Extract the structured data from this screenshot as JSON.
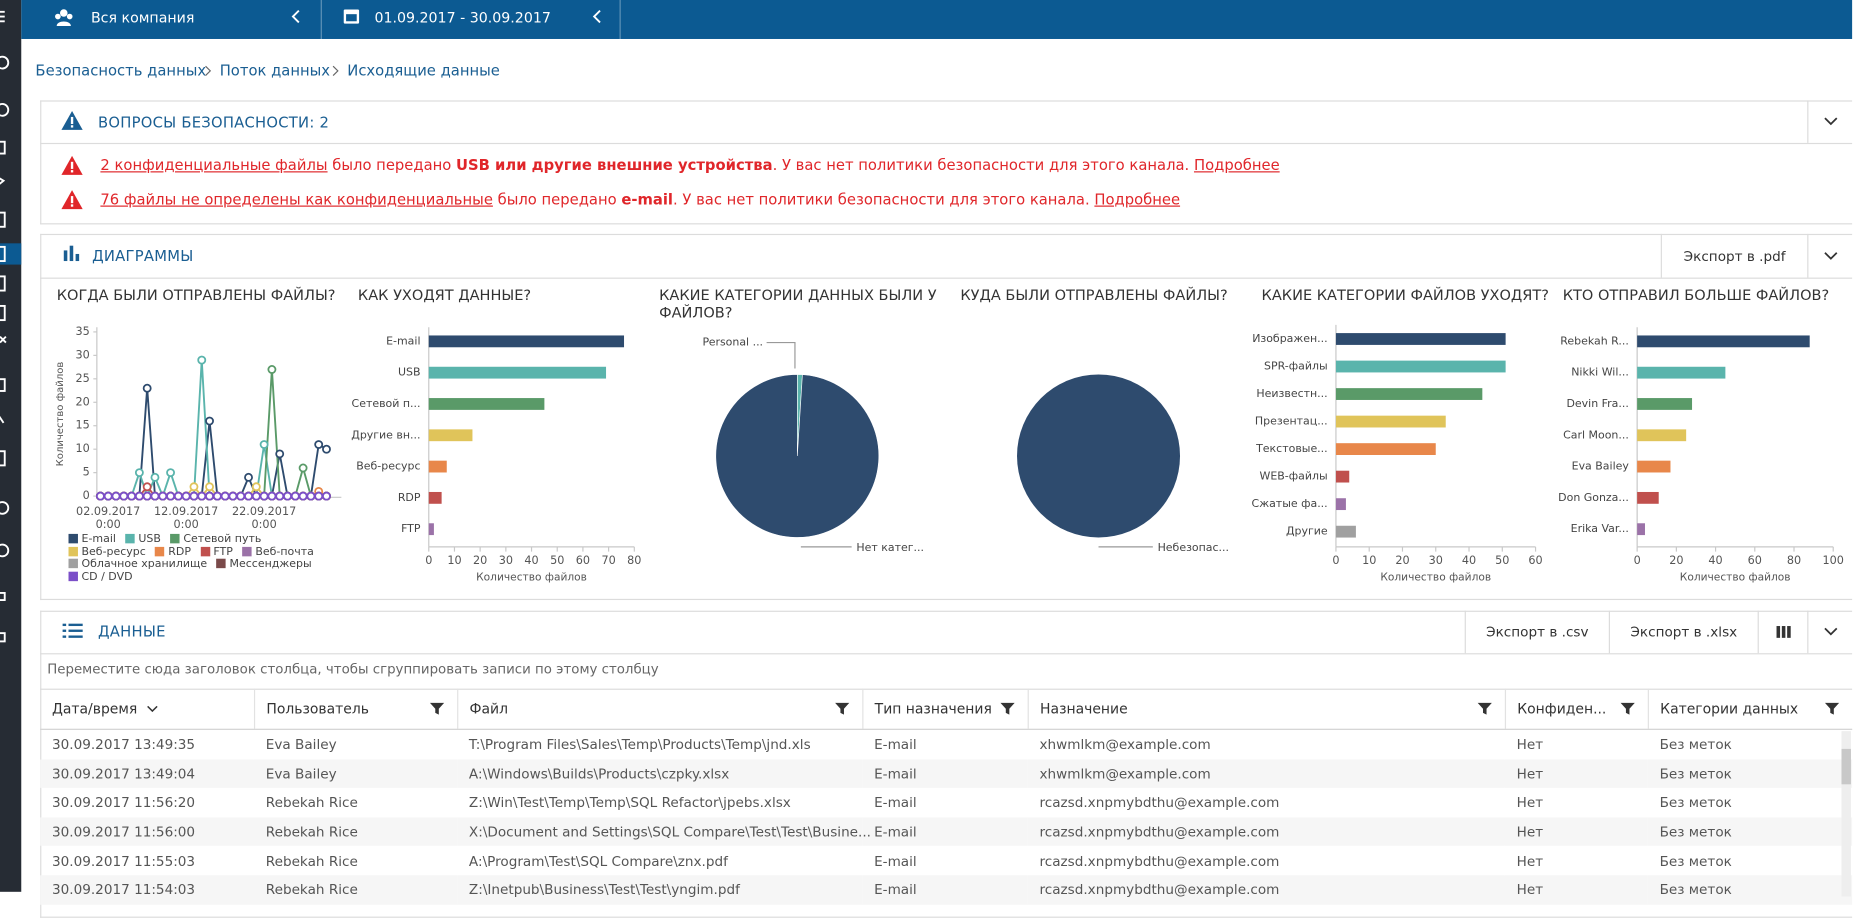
{
  "topbar": {
    "scope": "Вся компания",
    "period": "01.09.2017 - 30.09.2017"
  },
  "breadcrumbs": [
    "Безопасность данных",
    "Поток данных",
    "Исходящие данные"
  ],
  "issues": {
    "title": "ВОПРОСЫ БЕЗОПАСНОСТИ: 2",
    "alerts": [
      {
        "subject": "2 конфиденциальные файлы",
        "verb": " было передано ",
        "channel": "USB или другие внешние устройства",
        "message": ". У вас нет политики безопасности для этого канала.",
        "link": "Подробнее"
      },
      {
        "subject": "76 файлы не определены как конфиденциальные",
        "verb": " было передано ",
        "channel": "e-mail",
        "message": ". У вас нет политики безопасности для этого канала.",
        "link": "Подробнее"
      }
    ]
  },
  "charts_panel": {
    "title": "ДИАГРАММЫ",
    "export": "Экспорт в .pdf"
  },
  "charts": [
    {
      "type": "line",
      "title": "КОГДА БЫЛИ ОТПРАВЛЕНЫ ФАЙЛЫ?",
      "y_label": "Количество файлов",
      "categories": [
        null,
        "02.09.2017 0:00",
        null,
        null,
        null,
        null,
        null,
        null,
        null,
        null,
        null,
        "12.09.2017 0:00",
        null,
        null,
        null,
        null,
        null,
        null,
        null,
        null,
        null,
        "22.09.2017 0:00",
        null,
        null,
        null,
        null,
        null,
        null,
        null,
        null
      ],
      "ylim": [
        0,
        35
      ],
      "yticks": [
        0,
        5,
        10,
        15,
        20,
        25,
        30,
        35
      ],
      "series": [
        {
          "name": "E-mail",
          "color": "#2e4b6e",
          "values": [
            0,
            0,
            0,
            0,
            0,
            0,
            23,
            0,
            0,
            0,
            0,
            0,
            0,
            0,
            16,
            0,
            0,
            0,
            0,
            4,
            0,
            0,
            0,
            9,
            0,
            0,
            0,
            0,
            11,
            10
          ]
        },
        {
          "name": "USB",
          "color": "#5ab4ac",
          "values": [
            0,
            0,
            0,
            0,
            0,
            5,
            0,
            4,
            0,
            5,
            0,
            0,
            0,
            29,
            0,
            0,
            0,
            0,
            0,
            0,
            0,
            11,
            0,
            0,
            0,
            0,
            0,
            0,
            0,
            0
          ]
        },
        {
          "name": "Сетевой путь",
          "color": "#5a9a68",
          "values": [
            0,
            0,
            0,
            0,
            0,
            0,
            0,
            0,
            0,
            0,
            0,
            0,
            0,
            0,
            0,
            0,
            0,
            0,
            0,
            0,
            0,
            0,
            27,
            0,
            0,
            0,
            6,
            0,
            0,
            0
          ]
        },
        {
          "name": "Веб-ресурс",
          "color": "#e0c45a",
          "values": [
            0,
            0,
            0,
            0,
            0,
            0,
            0,
            0,
            0,
            0,
            0,
            0,
            2,
            0,
            2,
            0,
            0,
            0,
            0,
            0,
            2,
            0,
            0,
            0,
            0,
            0,
            0,
            0,
            0,
            0
          ]
        },
        {
          "name": "RDP",
          "color": "#e8874a",
          "values": [
            0,
            0,
            0,
            0,
            0,
            0,
            0,
            0,
            0,
            0,
            0,
            0,
            0,
            0,
            0,
            0,
            0,
            0,
            0,
            0,
            0,
            0,
            0,
            0,
            0,
            0,
            0,
            0,
            1,
            0
          ]
        },
        {
          "name": "FTP",
          "color": "#c0504d",
          "values": [
            0,
            0,
            0,
            0,
            0,
            0,
            2,
            0,
            0,
            0,
            0,
            0,
            0,
            0,
            0,
            0,
            0,
            0,
            0,
            0,
            0,
            0,
            0,
            0,
            0,
            0,
            0,
            0,
            0,
            0
          ]
        },
        {
          "name": "Веб-почта",
          "color": "#9b72a8",
          "values": [
            0,
            0,
            0,
            0,
            0,
            0,
            0,
            0,
            0,
            0,
            0,
            0,
            0,
            0,
            0,
            0,
            0,
            0,
            0,
            0,
            0,
            0,
            0,
            0,
            0,
            0,
            0,
            0,
            0,
            0
          ]
        },
        {
          "name": "Облачное хранилище",
          "color": "#a0a0a0",
          "values": [
            0,
            0,
            0,
            0,
            0,
            0,
            0,
            0,
            0,
            0,
            0,
            0,
            0,
            0,
            0,
            0,
            0,
            0,
            0,
            0,
            0,
            0,
            0,
            0,
            0,
            0,
            0,
            0,
            0,
            0
          ]
        },
        {
          "name": "Мессенджеры",
          "color": "#7a4a4a",
          "values": [
            0,
            0,
            0,
            0,
            0,
            0,
            0,
            0,
            0,
            0,
            0,
            0,
            0,
            0,
            0,
            0,
            0,
            0,
            0,
            0,
            0,
            0,
            0,
            0,
            0,
            0,
            0,
            0,
            0,
            0
          ]
        },
        {
          "name": "CD / DVD",
          "color": "#7b4fc8",
          "values": [
            0,
            0,
            0,
            0,
            0,
            0,
            0,
            0,
            0,
            0,
            0,
            0,
            0,
            0,
            0,
            0,
            0,
            0,
            0,
            0,
            0,
            0,
            0,
            0,
            0,
            0,
            0,
            0,
            0,
            0
          ]
        }
      ]
    },
    {
      "type": "bar",
      "orientation": "horizontal",
      "title": "КАК УХОДЯТ ДАННЫЕ?",
      "x_label": "Количество файлов",
      "categories": [
        "E-mail",
        "USB",
        "Сетевой п...",
        "Другие вн...",
        "Веб-ресурс",
        "RDP",
        "FTP"
      ],
      "values": [
        76,
        69,
        45,
        17,
        7,
        5,
        2
      ],
      "colors": [
        "#2e4b6e",
        "#5ab4ac",
        "#5a9a68",
        "#e0c45a",
        "#e8874a",
        "#c0504d",
        "#9b72a8"
      ],
      "xlim": [
        0,
        80
      ],
      "xticks": [
        0,
        10,
        20,
        30,
        40,
        50,
        60,
        70,
        80
      ]
    },
    {
      "type": "pie",
      "title": "КАКИЕ КАТЕГОРИИ ДАННЫХ БЫЛИ У ФАЙЛОВ?",
      "labels": [
        "Personal ...",
        "Нет катег..."
      ],
      "values": [
        1,
        99
      ],
      "colors": [
        "#5ab4ac",
        "#2e4b6e"
      ]
    },
    {
      "type": "pie",
      "title": "КУДА БЫЛИ ОТПРАВЛЕНЫ ФАЙЛЫ?",
      "labels": [
        "Небезопас..."
      ],
      "values": [
        100
      ],
      "colors": [
        "#2e4b6e"
      ]
    },
    {
      "type": "bar",
      "orientation": "horizontal",
      "title": "КАКИЕ КАТЕГОРИИ ФАЙЛОВ УХОДЯТ?",
      "x_label": "Количество файлов",
      "categories": [
        "Изображен...",
        "SPR-файлы",
        "Неизвестн...",
        "Презентац...",
        "Текстовые...",
        "WEB-файлы",
        "Сжатые фа...",
        "Другие"
      ],
      "values": [
        51,
        51,
        44,
        33,
        30,
        4,
        3,
        6
      ],
      "colors": [
        "#2e4b6e",
        "#5ab4ac",
        "#5a9a68",
        "#e0c45a",
        "#e8874a",
        "#c0504d",
        "#9b72a8",
        "#a0a0a0"
      ],
      "xlim": [
        0,
        60
      ],
      "xticks": [
        0,
        10,
        20,
        30,
        40,
        50,
        60
      ]
    },
    {
      "type": "bar",
      "orientation": "horizontal",
      "title": "КТО ОТПРАВИЛ БОЛЬШЕ ФАЙЛОВ?",
      "x_label": "Количество файлов",
      "categories": [
        "Rebekah R...",
        "Nikki Wil...",
        "Devin Fra...",
        "Carl Moon...",
        "Eva Bailey",
        "Don Gonza...",
        "Erika Var..."
      ],
      "values": [
        88,
        45,
        28,
        25,
        17,
        11,
        4
      ],
      "colors": [
        "#2e4b6e",
        "#5ab4ac",
        "#5a9a68",
        "#e0c45a",
        "#e8874a",
        "#c0504d",
        "#9b72a8"
      ],
      "xlim": [
        0,
        100
      ],
      "xticks": [
        0,
        20,
        40,
        60,
        80,
        100
      ]
    }
  ],
  "data_panel": {
    "title": "ДАННЫЕ",
    "export_csv": "Экспорт в .csv",
    "export_xlsx": "Экспорт в .xlsx",
    "group_hint": "Переместите сюда заголовок столбца, чтобы сгруппировать записи по этому столбцу",
    "columns": [
      "Дата/время",
      "Пользователь",
      "Файл",
      "Тип назначения",
      "Назначение",
      "Конфиден...",
      "Категории данных"
    ],
    "rows": [
      [
        "30.09.2017 13:49:35",
        "Eva Bailey",
        "T:\\Program Files\\Sales\\Temp\\Products\\Temp\\jnd.xls",
        "E-mail",
        "xhwmlkm@example.com",
        "Нет",
        "Без меток"
      ],
      [
        "30.09.2017 13:49:04",
        "Eva Bailey",
        "A:\\Windows\\Builds\\Products\\czpky.xlsx",
        "E-mail",
        "xhwmlkm@example.com",
        "Нет",
        "Без меток"
      ],
      [
        "30.09.2017 11:56:20",
        "Rebekah Rice",
        "Z:\\Win\\Test\\Temp\\Temp\\SQL Refactor\\jpebs.xlsx",
        "E-mail",
        "rcazsd.xnpmybdthu@example.com",
        "Нет",
        "Без меток"
      ],
      [
        "30.09.2017 11:56:00",
        "Rebekah Rice",
        "X:\\Document and Settings\\SQL Compare\\Test\\Test\\Busine...",
        "E-mail",
        "rcazsd.xnpmybdthu@example.com",
        "Нет",
        "Без меток"
      ],
      [
        "30.09.2017 11:55:03",
        "Rebekah Rice",
        "A:\\Program\\Test\\SQL Compare\\znx.pdf",
        "E-mail",
        "rcazsd.xnpmybdthu@example.com",
        "Нет",
        "Без меток"
      ],
      [
        "30.09.2017 11:54:03",
        "Rebekah Rice",
        "Z:\\Inetpub\\Business\\Test\\Test\\yngim.pdf",
        "E-mail",
        "rcazsd.xnpmybdthu@example.com",
        "Нет",
        "Без меток"
      ]
    ]
  }
}
